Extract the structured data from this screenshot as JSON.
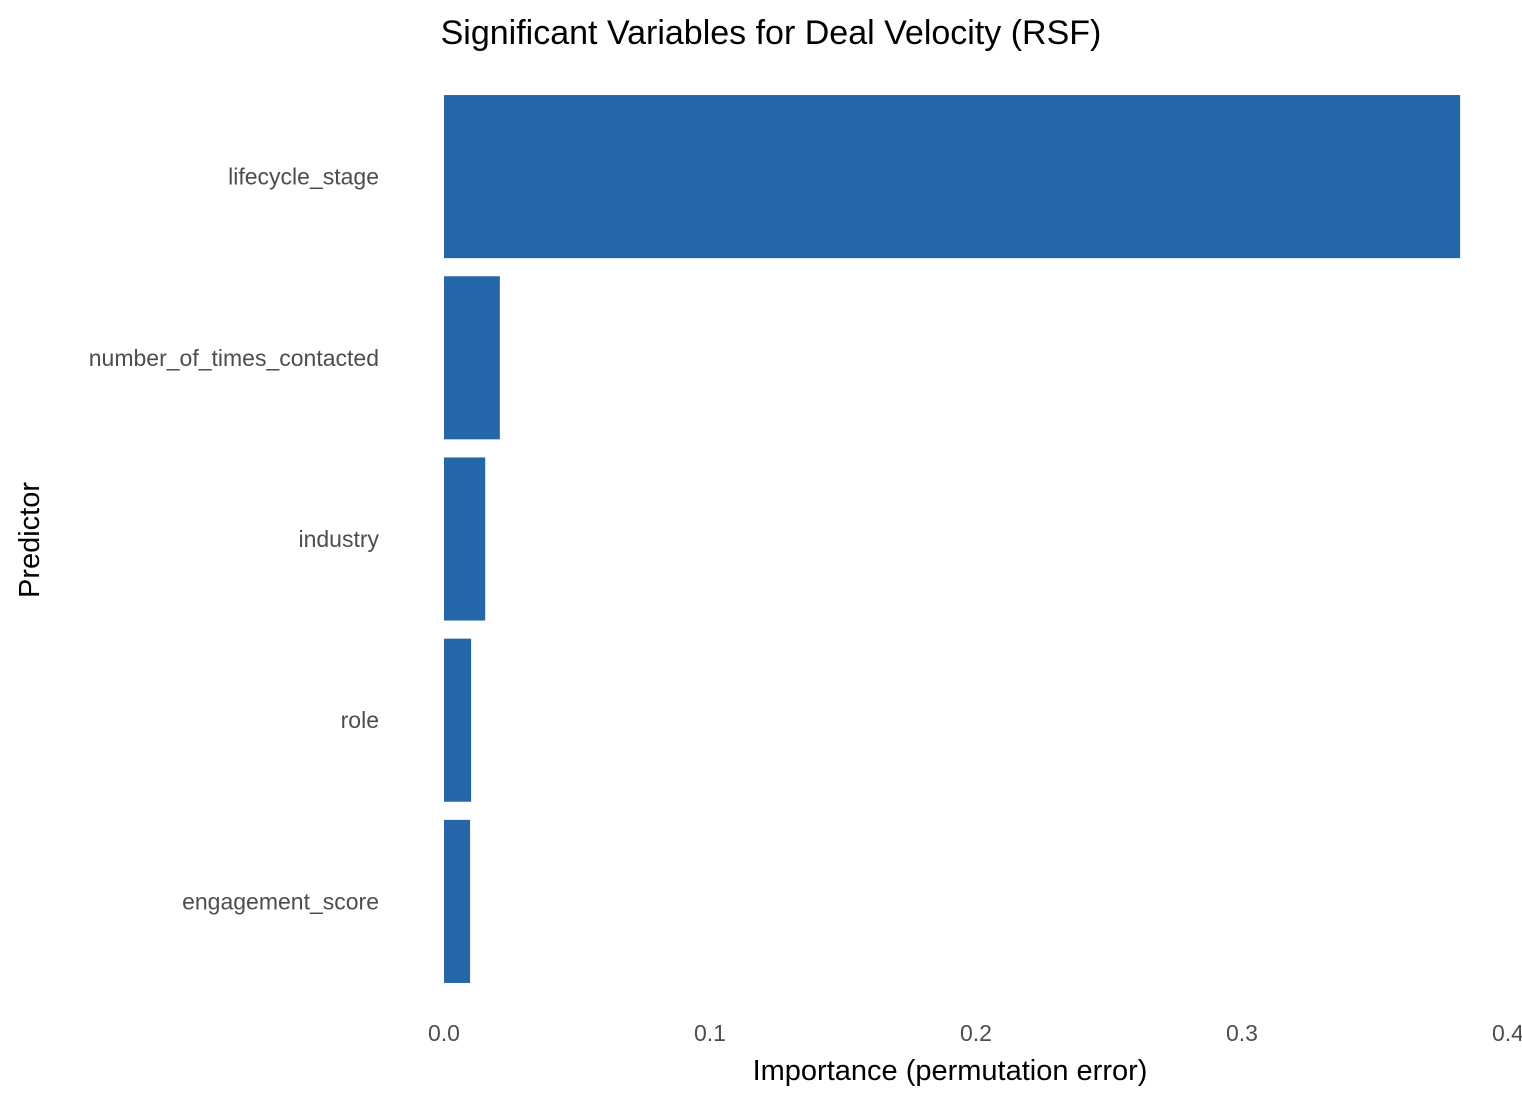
{
  "chart_data": {
    "type": "bar",
    "orientation": "horizontal",
    "title": "Significant Variables for Deal Velocity (RSF)",
    "xlabel": "Importance (permutation error)",
    "ylabel": "Predictor",
    "categories": [
      "lifecycle_stage",
      "number_of_times_contacted",
      "industry",
      "role",
      "engagement_score"
    ],
    "values": [
      0.382,
      0.021,
      0.0155,
      0.0102,
      0.0098
    ],
    "xlim": [
      0,
      0.4
    ],
    "xticks": [
      0.0,
      0.1,
      0.2,
      0.3,
      0.4
    ],
    "xtick_labels": [
      "0.0",
      "0.1",
      "0.2",
      "0.3",
      "0.4"
    ],
    "grid": false,
    "legend": "none",
    "bar_color": "#2466A7"
  }
}
